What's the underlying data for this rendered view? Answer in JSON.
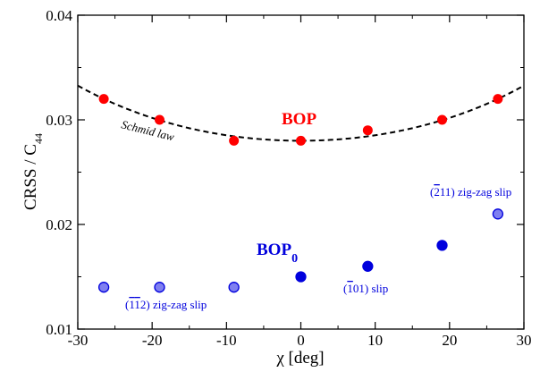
{
  "chart_data": {
    "type": "scatter",
    "xlabel": "χ [deg]",
    "ylabel": "CRSS / C",
    "ylabel_subscript": "44",
    "xlim": [
      -30,
      30
    ],
    "ylim": [
      0.01,
      0.04
    ],
    "xticks": [
      -30,
      -20,
      -10,
      0,
      10,
      20,
      30
    ],
    "yticks": [
      0.01,
      0.02,
      0.03,
      0.04
    ],
    "xtick_labels": [
      "-30",
      "-20",
      "-10",
      "0",
      "10",
      "20",
      "30"
    ],
    "ytick_labels": [
      "0.01",
      "0.02",
      "0.03",
      "0.04"
    ],
    "grid": false,
    "series": [
      {
        "name": "BOP",
        "color": "#ff0000",
        "x": [
          -26.5,
          -19,
          -9,
          0,
          9,
          19,
          26.5
        ],
        "y": [
          0.032,
          0.03,
          0.028,
          0.028,
          0.029,
          0.03,
          0.032
        ]
      },
      {
        "name": "BOP",
        "name_subscript": "0",
        "color": "#0000dd",
        "points": [
          {
            "x": -26.5,
            "y": 0.014,
            "fill": "#7f7ff0"
          },
          {
            "x": -19,
            "y": 0.014,
            "fill": "#7f7ff0"
          },
          {
            "x": -9,
            "y": 0.014,
            "fill": "#7f7ff0"
          },
          {
            "x": 0,
            "y": 0.015,
            "fill": "#0000dd"
          },
          {
            "x": 9,
            "y": 0.016,
            "fill": "#0000dd"
          },
          {
            "x": 19,
            "y": 0.018,
            "fill": "#0000dd"
          },
          {
            "x": 26.5,
            "y": 0.021,
            "fill": "#7f7ff0"
          }
        ]
      }
    ],
    "curve": {
      "name": "Schmid law",
      "style": "dashed",
      "color": "#000000",
      "base": 0.028,
      "amplitude": 0.004,
      "reference_angle_deg": 26.5
    },
    "annotations": {
      "bop0_left_text": " zig-zag slip",
      "bop0_right_text": " zig-zag slip",
      "bop0_mid_text": " slip"
    }
  }
}
